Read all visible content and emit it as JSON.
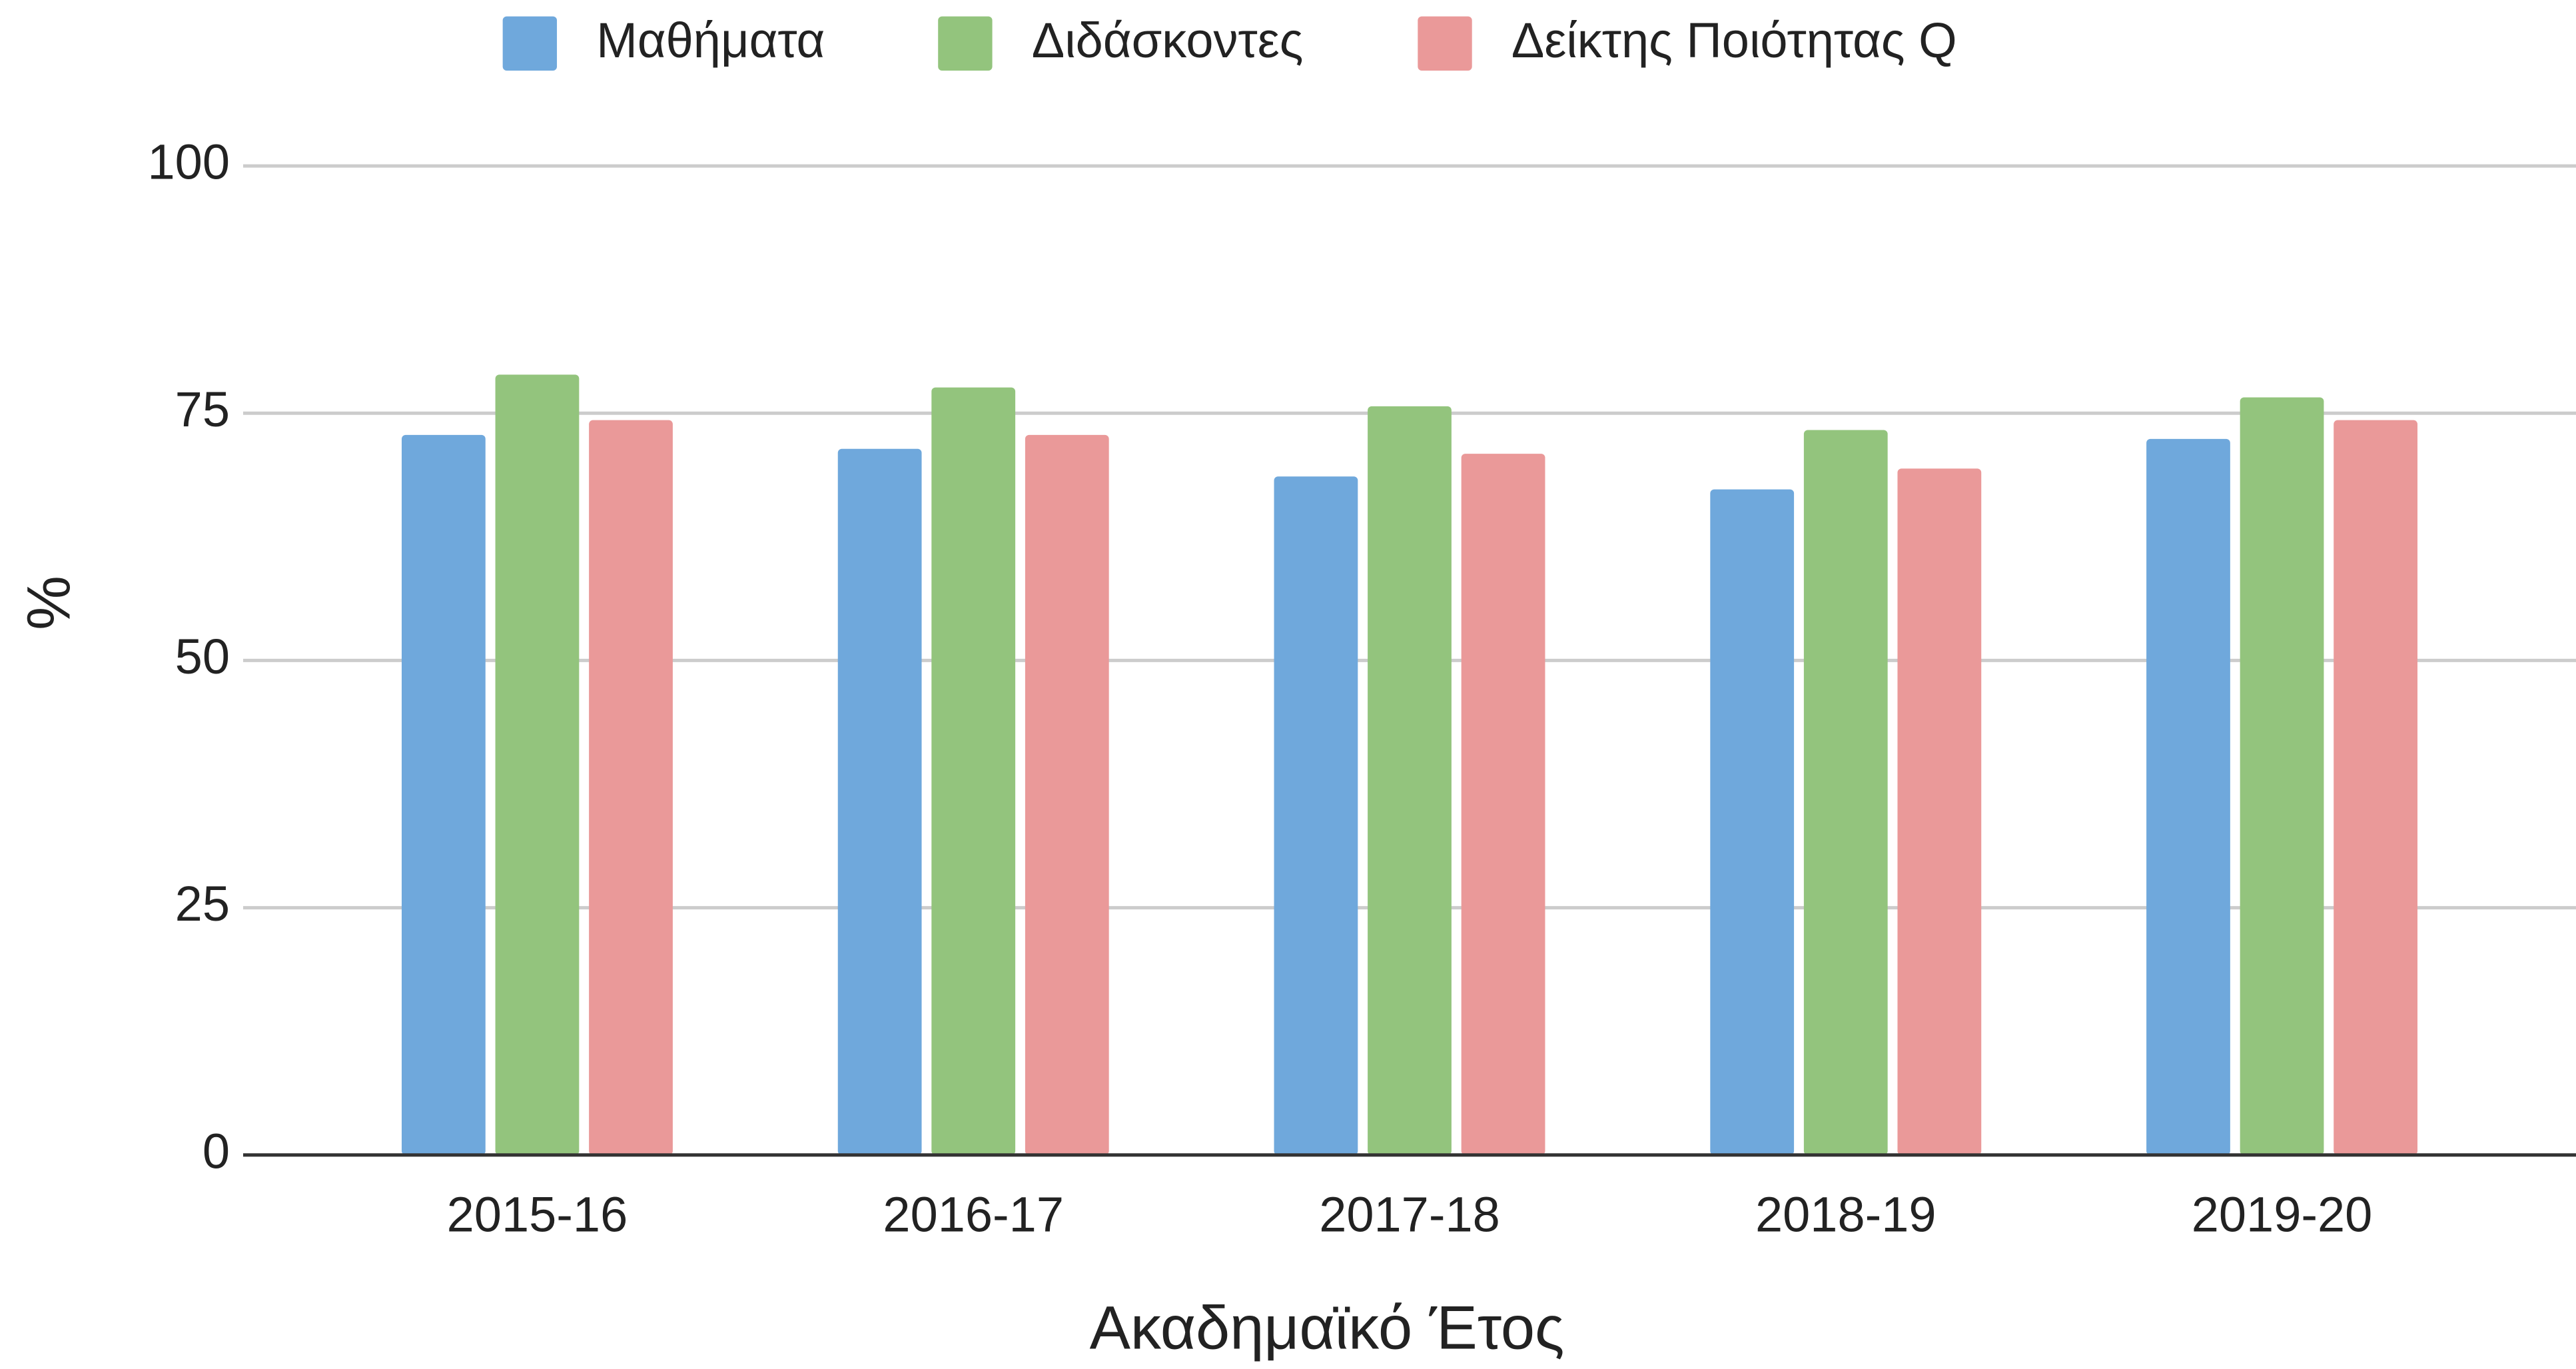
{
  "chart_data": {
    "type": "bar",
    "categories": [
      "2015-16",
      "2016-17",
      "2017-18",
      "2018-19",
      "2019-20"
    ],
    "series": [
      {
        "name": "Μαθήματα",
        "color": "#6fa8dc",
        "values": [
          72.8,
          71.4,
          68.6,
          67.3,
          72.4
        ]
      },
      {
        "name": "Διδάσκοντες",
        "color": "#93c47d",
        "values": [
          78.9,
          77.6,
          75.7,
          73.3,
          76.6
        ]
      },
      {
        "name": "Δείκτης Ποιότητας Q",
        "color": "#ea9999",
        "values": [
          74.3,
          72.8,
          70.9,
          69.4,
          74.3
        ]
      }
    ],
    "xlabel": "Ακαδημαϊκό Έτος",
    "ylabel": "%",
    "ylim": [
      0,
      100
    ],
    "yticks": [
      0,
      25,
      50,
      75,
      100
    ],
    "grid": true,
    "legend": "top"
  }
}
